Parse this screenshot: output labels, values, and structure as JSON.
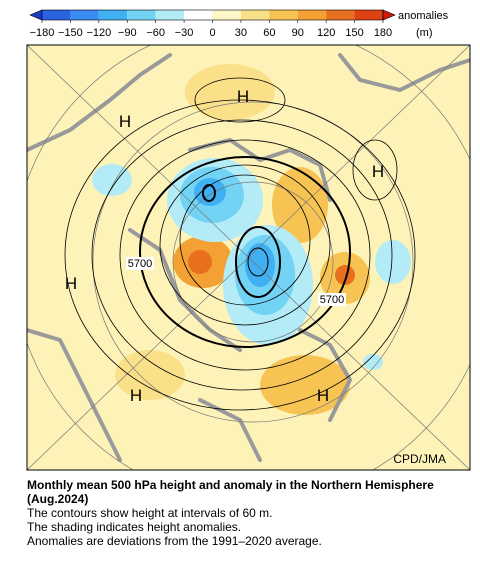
{
  "colorbar": {
    "ticks": [
      {
        "value": -180,
        "label": "−180"
      },
      {
        "value": -150,
        "label": "−150"
      },
      {
        "value": -120,
        "label": "−120"
      },
      {
        "value": -90,
        "label": "−90"
      },
      {
        "value": -60,
        "label": "−60"
      },
      {
        "value": -30,
        "label": "−30"
      },
      0,
      30,
      60,
      90,
      120,
      150,
      180
    ],
    "colors": [
      "#1b3cc4",
      "#2a62e0",
      "#3b8cf2",
      "#3fb0f2",
      "#72d3f5",
      "#b3ecf7",
      "#ffffff",
      "#fdf6c6",
      "#fbe08a",
      "#f7c453",
      "#f2a132",
      "#e86f1e",
      "#df4212",
      "#d01808"
    ],
    "title": "anomalies",
    "unit": "(m)"
  },
  "map": {
    "labels": [
      "H",
      "H",
      "H",
      "H",
      "H",
      "H",
      "5700",
      "5700"
    ],
    "credit": "CPD/JMA"
  },
  "caption": {
    "title": "Monthly mean 500 hPa height and anomaly in the Northern Hemisphere (Aug.2024)",
    "lines": [
      "The contours show height at intervals of 60 m.",
      "The shading indicates height anomalies.",
      "Anomalies are deviations from the 1991–2020 average."
    ]
  }
}
